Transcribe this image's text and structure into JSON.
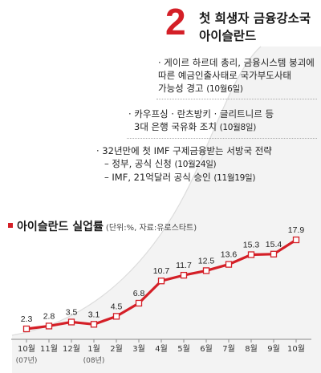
{
  "header": {
    "rank": "2",
    "title_line1": "첫 희생자 금융강소국",
    "title_line2": "아이슬란드"
  },
  "events": [
    {
      "lines": [
        {
          "text": "· 게이르 하르데 총리, 금융시스템 붕괴에"
        },
        {
          "text": "따른 예금인출사태로 국가부도사태"
        },
        {
          "text": "가능성 경고",
          "date": "(10월6일)"
        }
      ]
    },
    {
      "lines": [
        {
          "text": "· 카우프싱 · 란츠방키 · 글리트니르 등"
        },
        {
          "text": "3대 은행 국유화 조치",
          "date": "(10월8일)"
        }
      ]
    },
    {
      "lines": [
        {
          "text": "· 32년만에 첫 IMF 구제금융받는 서방국 전략"
        },
        {
          "text": "– 정부, 공식 신청",
          "date": "(10월24일)"
        },
        {
          "text": "– IMF, 21억달러 공식 승인",
          "date": "(11월19일)"
        }
      ]
    }
  ],
  "chart_title": "아이슬란드 실업률",
  "chart_unit": "(단위:%, 자료:유로스타트)",
  "chart_data": {
    "type": "line",
    "title": "아이슬란드 실업률",
    "unit_note": "(단위:%, 자료:유로스타트)",
    "categories": [
      "10월",
      "11월",
      "12월",
      "1월",
      "2월",
      "3월",
      "4월",
      "5월",
      "6월",
      "7월",
      "8월",
      "9월",
      "10월"
    ],
    "category_sublabels": [
      "(07년)",
      "",
      "",
      "(08년)",
      "",
      "",
      "",
      "",
      "",
      "",
      "",
      "",
      ""
    ],
    "values": [
      2.3,
      2.8,
      3.5,
      3.1,
      4.5,
      6.8,
      10.7,
      11.7,
      12.5,
      13.6,
      15.3,
      15.4,
      17.9
    ],
    "value_labels": [
      "2.3",
      "2.8",
      "3.5",
      "3.1",
      "4.5",
      "6.8",
      "10.7",
      "11.7",
      "12.5",
      "13.6",
      "15.3",
      "15.4",
      "17.9"
    ],
    "ylim": [
      0,
      20
    ],
    "grid": false,
    "colors": {
      "line": "#d41f27",
      "marker_fill": "#ffffff",
      "accent": "#d41f27",
      "curve": "#e0e0e0"
    }
  }
}
